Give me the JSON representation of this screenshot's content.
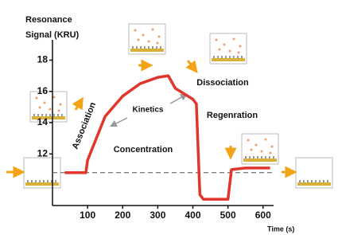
{
  "chart_data": {
    "type": "line",
    "title_lines": [
      "Resonance",
      "Signal (KRU)"
    ],
    "x_label": "Time (s)",
    "x": [
      35,
      95,
      100,
      150,
      200,
      250,
      300,
      330,
      350,
      400,
      410,
      420,
      430,
      500,
      510,
      550,
      620
    ],
    "series": [
      {
        "color": "#e0362c",
        "values": [
          10.8,
          10.8,
          11.6,
          14.4,
          15.7,
          16.5,
          16.9,
          17.0,
          16.2,
          15.5,
          15.2,
          9.4,
          9.1,
          9.1,
          11.0,
          11.1,
          11.1
        ]
      }
    ],
    "reference_line": 10.8,
    "xlim": [
      0,
      630
    ],
    "ylim": [
      8.7,
      19.3
    ],
    "xticks": [
      100,
      200,
      300,
      400,
      500,
      600
    ],
    "yticks": [
      12,
      14,
      16,
      18
    ],
    "annotations": [
      "Association",
      "Kinetics",
      "Concentration",
      "Dissociation",
      "Regenration"
    ]
  }
}
